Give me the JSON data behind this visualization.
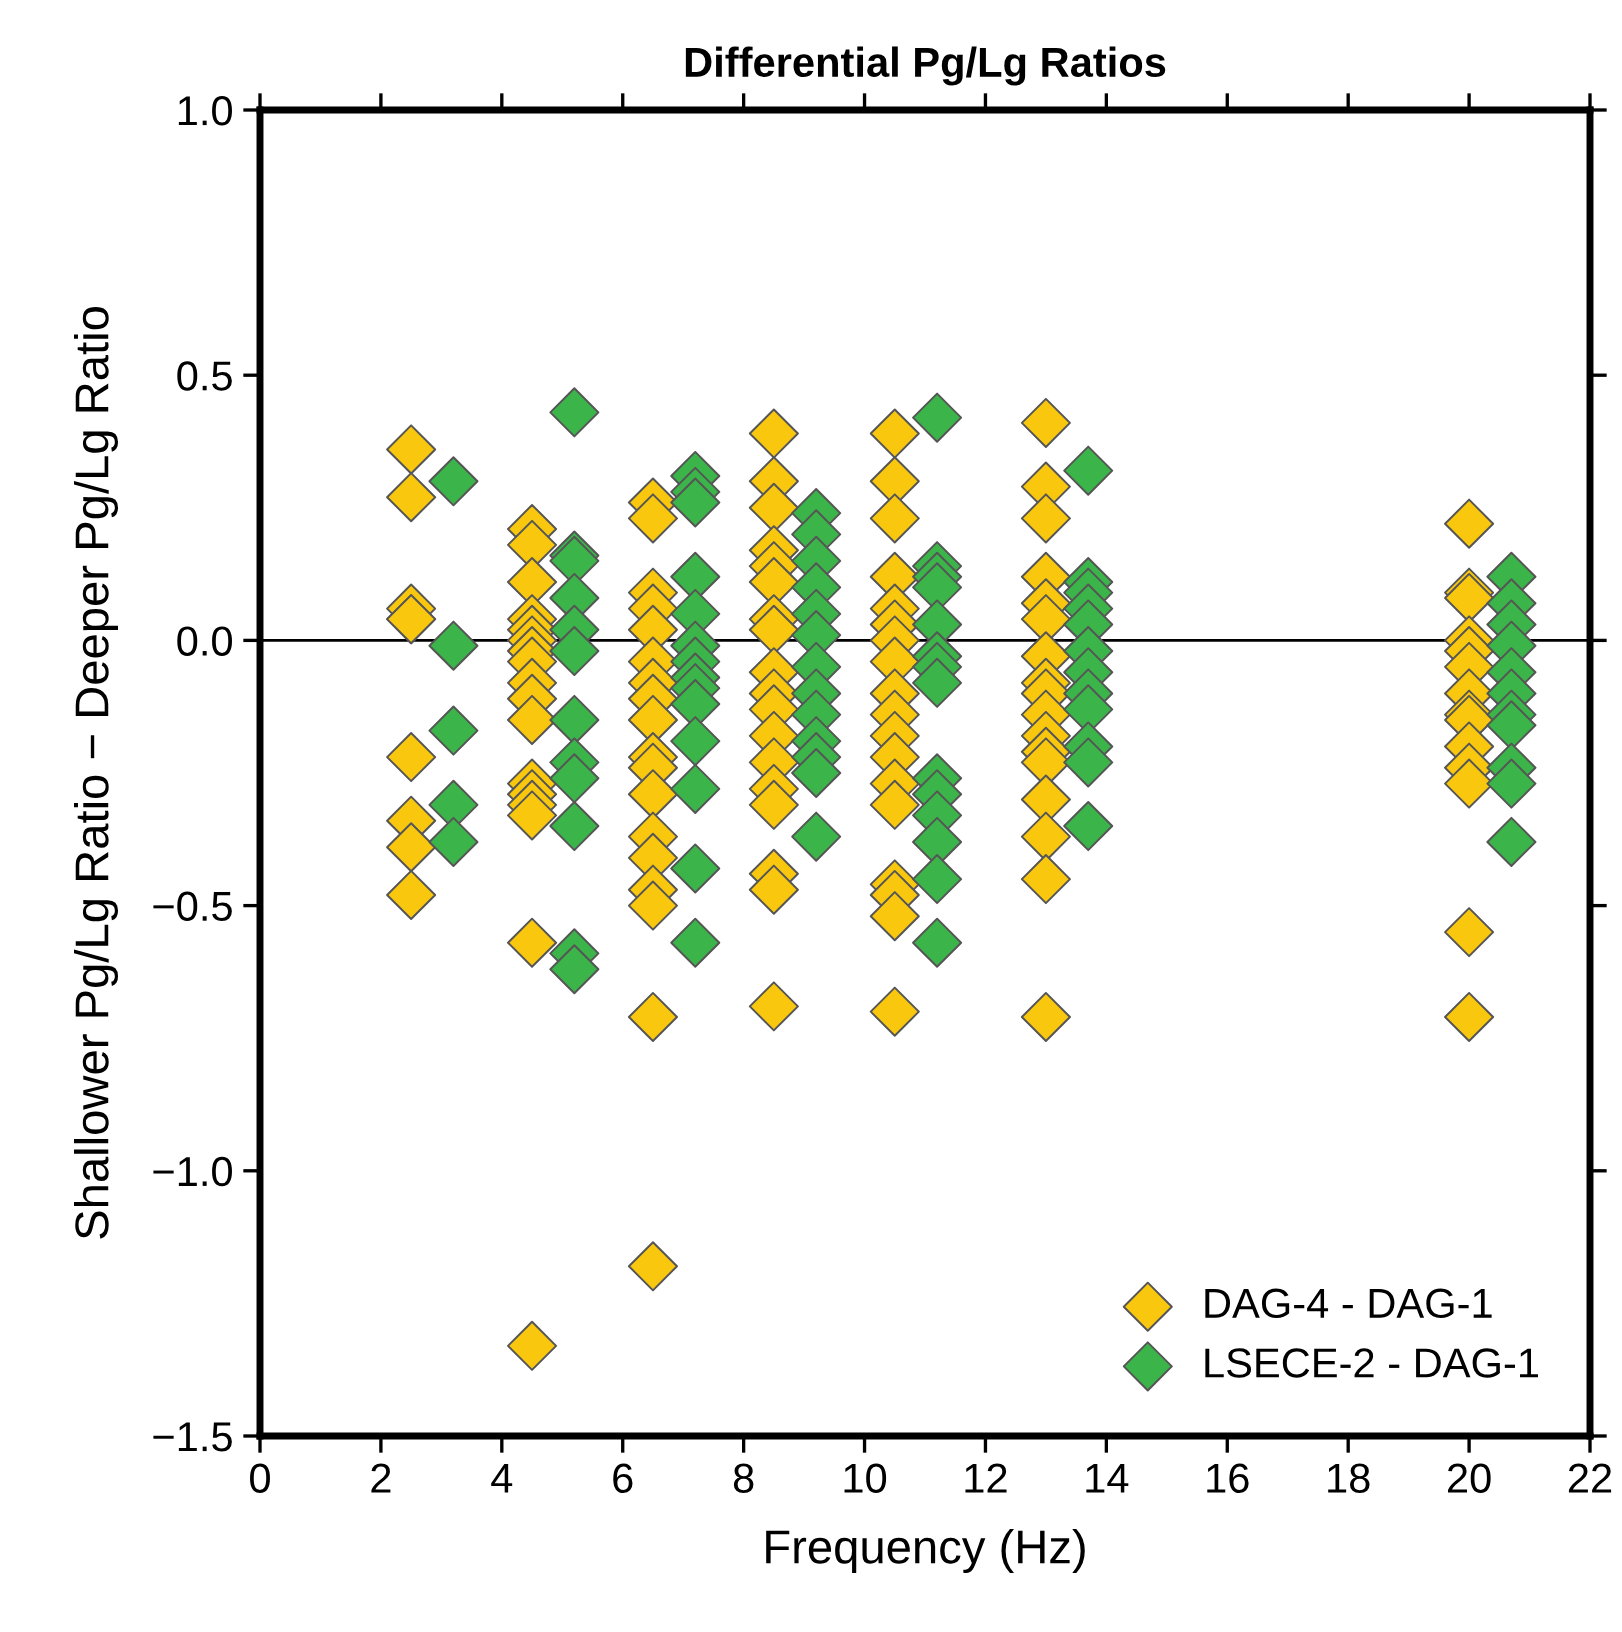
{
  "chart_data": {
    "type": "scatter",
    "title": "Differential Pg/Lg Ratios",
    "xlabel": "Frequency (Hz)",
    "ylabel": "Shallower Pg/Lg Ratio − Deeper Pg/Lg Ratio",
    "xlim": [
      0,
      22
    ],
    "ylim": [
      -1.5,
      1.0
    ],
    "xticks": [
      0,
      2,
      4,
      6,
      8,
      10,
      12,
      14,
      16,
      18,
      20,
      22
    ],
    "yticks": [
      {
        "value": -1.5,
        "label": "−1.5"
      },
      {
        "value": -1.0,
        "label": "−1.0"
      },
      {
        "value": -0.5,
        "label": "−0.5"
      },
      {
        "value": 0,
        "label": "0.0"
      },
      {
        "value": 0.5,
        "label": "0.5"
      },
      {
        "value": 1.0,
        "label": "1.0"
      }
    ],
    "marker": "diamond",
    "legend": "bottom right",
    "grid": false,
    "ref_lines": [
      {
        "axis": "y",
        "value": 0,
        "color": "#000000"
      }
    ],
    "series": [
      {
        "name": "DAG-4 - DAG-1",
        "color": "#f9c80e",
        "x": [
          2.5,
          2.5,
          2.5,
          2.5,
          2.5,
          2.5,
          2.5,
          2.5,
          2.5,
          4.5,
          4.5,
          4.5,
          4.5,
          4.5,
          4.5,
          4.5,
          4.5,
          4.5,
          4.5,
          4.5,
          4.5,
          4.5,
          4.5,
          4.5,
          4.5,
          4.5,
          6.5,
          6.5,
          6.5,
          6.5,
          6.5,
          6.5,
          6.5,
          6.5,
          6.5,
          6.5,
          6.5,
          6.5,
          6.5,
          6.5,
          6.5,
          6.5,
          6.5,
          6.5,
          8.5,
          8.5,
          8.5,
          8.5,
          8.5,
          8.5,
          8.5,
          8.5,
          8.5,
          8.5,
          8.5,
          8.5,
          8.5,
          8.5,
          8.5,
          8.5,
          8.5,
          8.5,
          10.5,
          10.5,
          10.5,
          10.5,
          10.5,
          10.5,
          10.5,
          10.5,
          10.5,
          10.5,
          10.5,
          10.5,
          10.5,
          10.5,
          10.5,
          10.5,
          10.5,
          10.5,
          13,
          13,
          13,
          13,
          13,
          13,
          13,
          13,
          13,
          13,
          13,
          13,
          13,
          13,
          13,
          13,
          13,
          20,
          20,
          20,
          20,
          20,
          20,
          20,
          20,
          20,
          20,
          20,
          20,
          20,
          20
        ],
        "values": [
          0.36,
          0.27,
          0.06,
          0.04,
          0.04,
          -0.22,
          -0.34,
          -0.39,
          -0.48,
          0.21,
          0.18,
          0.11,
          0.04,
          0.02,
          0.0,
          -0.02,
          -0.04,
          -0.08,
          -0.11,
          -0.15,
          -0.27,
          -0.29,
          -0.31,
          -0.33,
          -0.57,
          -1.33,
          0.26,
          0.23,
          0.09,
          0.06,
          0.02,
          -0.04,
          -0.08,
          -0.11,
          -0.15,
          -0.22,
          -0.24,
          -0.29,
          -0.37,
          -0.41,
          -0.47,
          -0.5,
          -0.71,
          -1.18,
          0.39,
          0.3,
          0.25,
          0.17,
          0.14,
          0.11,
          0.04,
          0.02,
          -0.06,
          -0.1,
          -0.13,
          -0.18,
          -0.23,
          -0.28,
          -0.31,
          -0.44,
          -0.47,
          -0.69,
          0.39,
          0.3,
          0.23,
          0.12,
          0.06,
          0.03,
          0.0,
          -0.04,
          -0.1,
          -0.14,
          -0.18,
          -0.22,
          -0.27,
          -0.31,
          -0.46,
          -0.48,
          -0.52,
          -0.7,
          0.41,
          0.29,
          0.23,
          0.12,
          0.07,
          0.04,
          -0.03,
          -0.08,
          -0.1,
          -0.14,
          -0.18,
          -0.21,
          -0.23,
          -0.3,
          -0.37,
          -0.45,
          -0.71,
          0.22,
          0.09,
          0.08,
          0.0,
          -0.02,
          -0.05,
          -0.1,
          -0.14,
          -0.15,
          -0.2,
          -0.24,
          -0.27,
          -0.55,
          -0.71
        ]
      },
      {
        "name": "LSECE-2 - DAG-1",
        "color": "#3bb44a",
        "x": [
          3.2,
          3.2,
          3.2,
          3.2,
          3.2,
          5.2,
          5.2,
          5.2,
          5.2,
          5.2,
          5.2,
          5.2,
          5.2,
          5.2,
          5.2,
          5.2,
          5.2,
          7.2,
          7.2,
          7.2,
          7.2,
          7.2,
          7.2,
          7.2,
          7.2,
          7.2,
          7.2,
          7.2,
          7.2,
          7.2,
          7.2,
          9.2,
          9.2,
          9.2,
          9.2,
          9.2,
          9.2,
          9.2,
          9.2,
          9.2,
          9.2,
          9.2,
          9.2,
          9.2,
          11.2,
          11.2,
          11.2,
          11.2,
          11.2,
          11.2,
          11.2,
          11.2,
          11.2,
          11.2,
          11.2,
          11.2,
          11.2,
          11.2,
          13.7,
          13.7,
          13.7,
          13.7,
          13.7,
          13.7,
          13.7,
          13.7,
          13.7,
          13.7,
          13.7,
          13.7,
          20.7,
          20.7,
          20.7,
          20.7,
          20.7,
          20.7,
          20.7,
          20.7,
          20.7,
          20.7,
          20.7
        ],
        "values": [
          0.3,
          -0.01,
          -0.17,
          -0.31,
          -0.38,
          0.43,
          0.16,
          0.15,
          0.08,
          0.02,
          -0.02,
          -0.15,
          -0.23,
          -0.26,
          -0.35,
          -0.59,
          -0.62,
          0.31,
          0.28,
          0.26,
          0.12,
          0.05,
          -0.01,
          -0.04,
          -0.07,
          -0.09,
          -0.12,
          -0.19,
          -0.28,
          -0.43,
          -0.57,
          0.24,
          0.2,
          0.15,
          0.1,
          0.05,
          0.01,
          -0.05,
          -0.1,
          -0.14,
          -0.19,
          -0.22,
          -0.25,
          -0.37,
          0.42,
          0.14,
          0.12,
          0.1,
          0.03,
          -0.03,
          -0.05,
          -0.08,
          -0.26,
          -0.29,
          -0.33,
          -0.38,
          -0.45,
          -0.57,
          0.32,
          0.11,
          0.09,
          0.06,
          0.03,
          -0.02,
          -0.06,
          -0.1,
          -0.13,
          -0.2,
          -0.23,
          -0.35,
          0.12,
          0.07,
          0.03,
          -0.01,
          -0.06,
          -0.1,
          -0.14,
          -0.16,
          -0.24,
          -0.27,
          -0.38
        ]
      }
    ]
  }
}
